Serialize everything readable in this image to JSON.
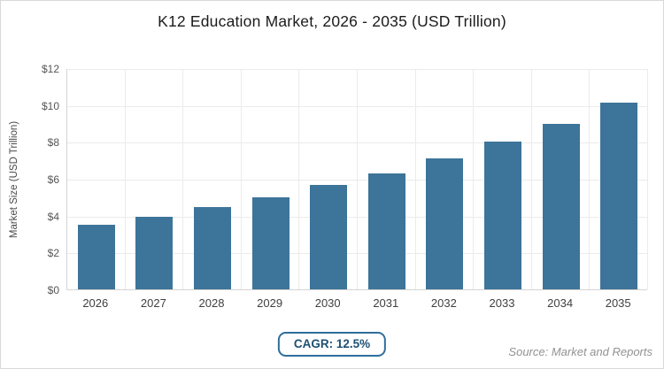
{
  "page": {
    "cagr_label": "CAGR: 12.5%",
    "source": "Source: Market and Reports"
  },
  "colors": {
    "bar": "#3d7499",
    "grid": "#ebebeb",
    "axis": "#d4d4d4",
    "badge_border": "#2e6e9c",
    "badge_text": "#1d4f72"
  },
  "chart_data": {
    "type": "bar",
    "title": "K12 Education Market, 2026 - 2035 (USD Trillion)",
    "categories": [
      "2026",
      "2027",
      "2028",
      "2029",
      "2030",
      "2031",
      "2032",
      "2033",
      "2034",
      "2035"
    ],
    "values": [
      3.5,
      3.95,
      4.45,
      5.0,
      5.65,
      6.3,
      7.1,
      8.0,
      9.0,
      10.15
    ],
    "xlabel": "",
    "ylabel": "Market Size (USD Trillion)",
    "ylim": [
      0,
      12
    ],
    "ytick_step": 2,
    "ytick_prefix": "$",
    "grid": true,
    "legend": false,
    "annotations": [
      "CAGR: 12.5%",
      "Source: Market and Reports"
    ]
  }
}
